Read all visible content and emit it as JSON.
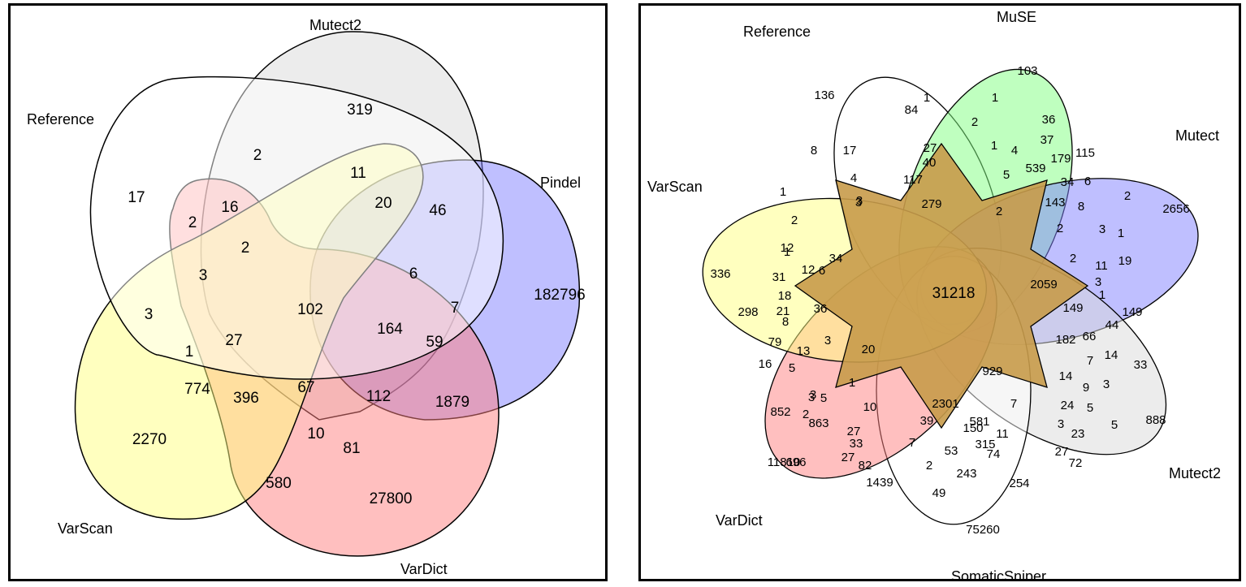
{
  "left": {
    "sets": [
      {
        "name": "Reference",
        "color": "#ffffff"
      },
      {
        "name": "Mutect2",
        "color": "#d9d9d9"
      },
      {
        "name": "Pindel",
        "color": "#8080ff"
      },
      {
        "name": "VarDict",
        "color": "#ff8080"
      },
      {
        "name": "VarScan",
        "color": "#ffff80"
      }
    ],
    "regions": [
      "17",
      "319",
      "46",
      "182796",
      "27800",
      "2270",
      "2",
      "11",
      "20",
      "6",
      "7",
      "59",
      "1879",
      "81",
      "580",
      "3",
      "2",
      "16",
      "2",
      "3",
      "1",
      "774",
      "27",
      "102",
      "164",
      "112",
      "67",
      "396",
      "10"
    ]
  },
  "right": {
    "sets": [
      {
        "name": "Reference",
        "color": "#ffffff"
      },
      {
        "name": "MuSE",
        "color": "#80ff80"
      },
      {
        "name": "Mutect",
        "color": "#8080ff"
      },
      {
        "name": "Mutect2",
        "color": "#d9d9d9"
      },
      {
        "name": "SomaticSniper",
        "color": "#ffffff"
      },
      {
        "name": "VarDict",
        "color": "#ff8080"
      },
      {
        "name": "VarScan",
        "color": "#ffff80"
      }
    ],
    "center": "31218",
    "regions": [
      "136",
      "84",
      "103",
      "1",
      "1",
      "27",
      "2",
      "36",
      "40",
      "117",
      "17",
      "8",
      "4",
      "3",
      "279",
      "1",
      "4",
      "37",
      "539",
      "179",
      "115",
      "5",
      "34",
      "6",
      "143",
      "8",
      "2",
      "2",
      "2656",
      "2",
      "3",
      "1",
      "2",
      "11",
      "19",
      "2059",
      "3",
      "149",
      "1",
      "149",
      "182",
      "66",
      "44",
      "7",
      "14",
      "33",
      "3",
      "929",
      "14",
      "9",
      "24",
      "5",
      "5",
      "888",
      "3",
      "23",
      "27",
      "72",
      "7",
      "11",
      "581",
      "74",
      "315",
      "254",
      "150",
      "53",
      "243",
      "2301",
      "39",
      "7",
      "2",
      "49",
      "75260",
      "10",
      "27",
      "33",
      "82",
      "1439",
      "27",
      "3",
      "2",
      "1",
      "863",
      "696",
      "852",
      "3",
      "5",
      "11810",
      "20",
      "3",
      "5",
      "13",
      "16",
      "79",
      "8",
      "36",
      "298",
      "21",
      "18",
      "31",
      "12",
      "1",
      "12",
      "6",
      "34",
      "336",
      "1",
      "2",
      "3"
    ]
  }
}
